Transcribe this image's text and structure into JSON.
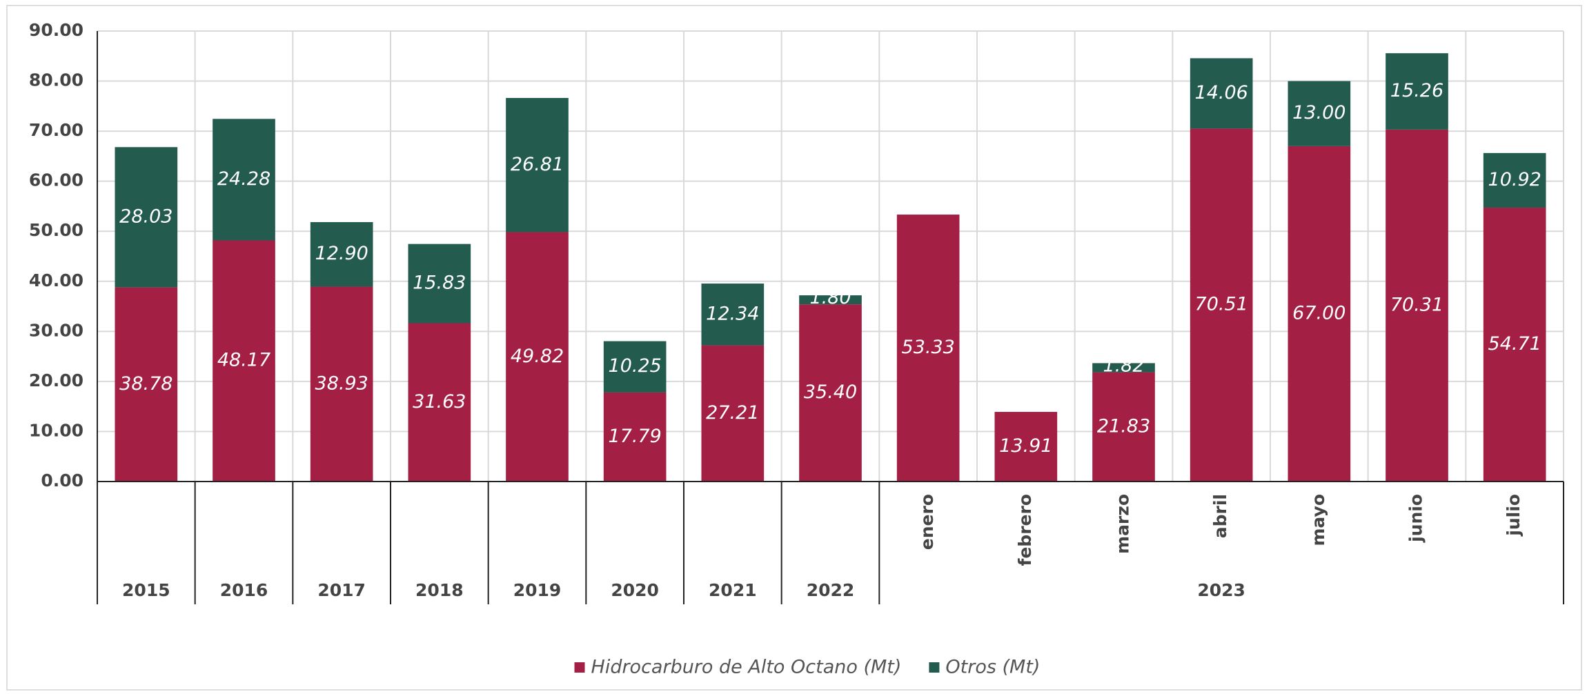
{
  "chart_data": {
    "type": "stacked_bar",
    "categories": [
      "2015",
      "2016",
      "2017",
      "2018",
      "2019",
      "2020",
      "2021",
      "2022",
      "enero",
      "febrero",
      "marzo",
      "abril",
      "mayo",
      "junio",
      "julio"
    ],
    "category_groups": [
      {
        "label": "2023",
        "count": 7
      }
    ],
    "series": [
      {
        "name": "Hidrocarburo de Alto Octano (Mt)",
        "color": "#a31f44",
        "values": [
          38.78,
          48.17,
          38.93,
          31.63,
          49.82,
          17.79,
          27.21,
          35.4,
          53.33,
          13.91,
          21.83,
          70.51,
          67.0,
          70.31,
          54.71
        ],
        "value_labels": [
          "38.78",
          "48.17",
          "38.93",
          "31.63",
          "49.82",
          "17.79",
          "27.21",
          "35.40",
          "53.33",
          "13.91",
          "21.83",
          "70.51",
          "67.00",
          "70.31",
          "54.71"
        ]
      },
      {
        "name": "Otros (Mt)",
        "color": "#235b4e",
        "values": [
          28.03,
          24.28,
          12.9,
          15.83,
          26.81,
          10.25,
          12.34,
          1.8,
          null,
          null,
          1.82,
          14.06,
          13.0,
          15.26,
          10.92
        ],
        "value_labels": [
          "28.03",
          "24.28",
          "12.90",
          "15.83",
          "26.81",
          "10.25",
          "12.34",
          "1.80",
          null,
          null,
          "1.82",
          "14.06",
          "13.00",
          "15.26",
          "10.92"
        ]
      }
    ],
    "ylim": [
      0,
      90
    ],
    "yticks": [
      {
        "value": 0,
        "label": "0.00"
      },
      {
        "value": 10,
        "label": "10.00"
      },
      {
        "value": 20,
        "label": "20.00"
      },
      {
        "value": 30,
        "label": "30.00"
      },
      {
        "value": 40,
        "label": "40.00"
      },
      {
        "value": 50,
        "label": "50.00"
      },
      {
        "value": 60,
        "label": "60.00"
      },
      {
        "value": 70,
        "label": "70.00"
      },
      {
        "value": 80,
        "label": "80.00"
      },
      {
        "value": 90,
        "label": "90.00"
      }
    ],
    "grid": true,
    "legend": "bottom"
  }
}
